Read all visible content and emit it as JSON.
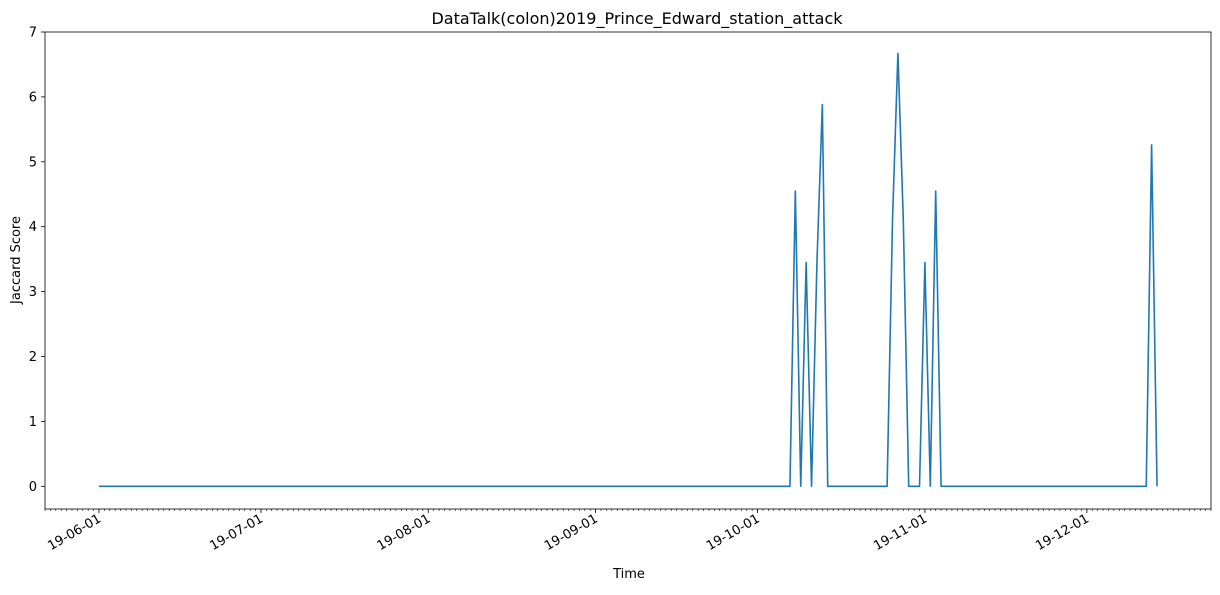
{
  "chart_data": {
    "type": "line",
    "title": "DataTalk(colon)2019_Prince_Edward_station_attack",
    "xlabel": "Time",
    "ylabel": "Jaccard Score",
    "xlim": [
      "2019-05-22",
      "2019-12-24"
    ],
    "ylim": [
      -0.35,
      7
    ],
    "x_ticks": [
      "2019-06-01",
      "2019-07-01",
      "2019-08-01",
      "2019-09-01",
      "2019-10-01",
      "2019-11-01",
      "2019-12-01"
    ],
    "x_tick_labels": [
      "19-06-01",
      "19-07-01",
      "19-08-01",
      "19-09-01",
      "19-10-01",
      "19-11-01",
      "19-12-01"
    ],
    "y_ticks": [
      0,
      1,
      2,
      3,
      4,
      5,
      6,
      7
    ],
    "y_tick_labels": [
      "0",
      "1",
      "2",
      "3",
      "4",
      "5",
      "6",
      "7"
    ],
    "grid": false,
    "line_color": "#1f77b4",
    "series": [
      {
        "x": [
          "2019-06-01",
          "2019-10-07",
          "2019-10-08",
          "2019-10-09",
          "2019-10-10",
          "2019-10-11",
          "2019-10-12",
          "2019-10-13",
          "2019-10-14",
          "2019-10-15",
          "2019-10-25",
          "2019-10-26",
          "2019-10-27",
          "2019-10-28",
          "2019-10-29",
          "2019-10-30",
          "2019-10-31",
          "2019-11-01",
          "2019-11-02",
          "2019-11-03",
          "2019-11-04",
          "2019-12-12",
          "2019-12-13",
          "2019-12-14"
        ],
        "y": [
          0,
          0,
          4.55,
          0,
          3.45,
          0,
          3.45,
          5.88,
          0,
          0,
          0,
          4.1,
          6.67,
          4.1,
          0,
          0,
          0,
          3.45,
          0,
          4.55,
          0,
          0,
          5.26,
          0
        ]
      }
    ]
  }
}
